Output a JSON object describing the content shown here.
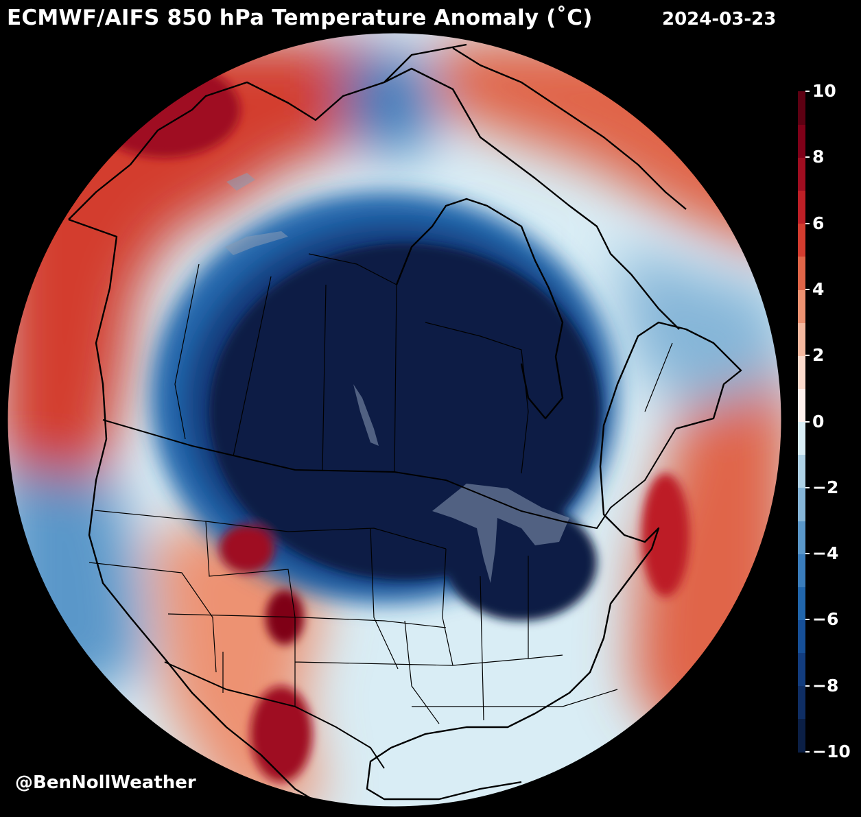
{
  "header": {
    "title": "ECMWF/AIFS 850 hPa Temperature Anomaly (˚C)",
    "date": "2024-03-23"
  },
  "footer": {
    "credit": "@BenNollWeather"
  },
  "map": {
    "variable": "850 hPa temperature anomaly",
    "projection": "orthographic globe centered on North America",
    "regions": {
      "cold_core": "central Canada and northern United States, Great Lakes",
      "warm_west": "Alaska, Yukon and northeast Pacific",
      "warm_southwest": "Colorado, Utah, Arizona and New Mexico",
      "warm_atlantic": "western Atlantic off the U.S. East Coast and Atlantic Canada",
      "warm_arctic": "northern Greenland and Baffin Bay"
    }
  },
  "colorbar": {
    "min": -10,
    "max": 10,
    "step": 1,
    "tick_labels": [
      "10",
      "8",
      "6",
      "4",
      "2",
      "0",
      "−2",
      "−4",
      "−6",
      "−8",
      "−10"
    ],
    "colors": [
      "#0b1f45",
      "#0f2e64",
      "#123c7e",
      "#164f97",
      "#2166ac",
      "#3a7dbc",
      "#5a97c9",
      "#86b6d8",
      "#afd2e6",
      "#d9edf5",
      "#fdf0ec",
      "#fbdacc",
      "#f5b9a0",
      "#ed9272",
      "#e06548",
      "#d33c2f",
      "#bd1f26",
      "#9f0d20",
      "#7f0018",
      "#5d0012"
    ],
    "nodata": "#000000"
  }
}
